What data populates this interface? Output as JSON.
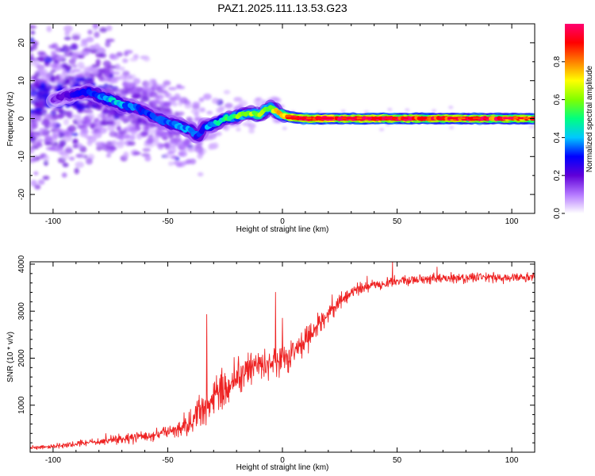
{
  "figure": {
    "title": "PAZ1.2025.111.13.53.G23"
  },
  "chart_data": [
    {
      "type": "heatmap",
      "xlabel": "Height of straight line (km)",
      "ylabel": "Frequency (Hz)",
      "xlim": [
        -110,
        110
      ],
      "ylim": [
        -25,
        25
      ],
      "xticks": [
        -100,
        -50,
        0,
        50,
        100
      ],
      "yticks": [
        -20,
        -10,
        0,
        10,
        20
      ],
      "grid": false,
      "colorbar": {
        "label": "Normalized spectral amplitude",
        "range": [
          0,
          1
        ],
        "ticks": [
          "0.0",
          "0.2",
          "0.4",
          "0.6",
          "0.8"
        ],
        "tick_values": [
          0.0,
          0.2,
          0.4,
          0.6,
          0.8
        ],
        "colormap": "rainbow",
        "colors": [
          "#ffffff",
          "#b478ff",
          "#6000d8",
          "#0000ff",
          "#00c8ff",
          "#00ff80",
          "#80ff00",
          "#ffff00",
          "#ff8000",
          "#ff0000",
          "#ff0070"
        ]
      },
      "ridge": {
        "x": [
          -100,
          -95,
          -90,
          -85,
          -80,
          -75,
          -70,
          -65,
          -60,
          -55,
          -50,
          -45,
          -40,
          -37,
          -34,
          -30,
          -25,
          -20,
          -15,
          -10,
          -8,
          -5,
          -3,
          0,
          5,
          10,
          20,
          30,
          40,
          50,
          60,
          70,
          80,
          90,
          100,
          110
        ],
        "y": [
          5,
          6,
          6.5,
          7,
          6,
          5,
          3.5,
          3,
          2,
          0,
          -1,
          -2,
          -3,
          -5,
          -2,
          -1.5,
          0,
          0.5,
          1.5,
          1,
          2,
          3,
          2,
          1,
          0.2,
          0,
          0,
          0,
          0,
          0,
          0,
          0,
          0,
          0,
          0,
          0
        ],
        "amplitude": [
          0.15,
          0.2,
          0.25,
          0.3,
          0.35,
          0.4,
          0.38,
          0.35,
          0.3,
          0.3,
          0.33,
          0.35,
          0.38,
          0.3,
          0.3,
          0.42,
          0.5,
          0.55,
          0.6,
          0.65,
          0.62,
          0.6,
          0.65,
          0.75,
          0.92,
          0.95,
          0.95,
          0.95,
          0.92,
          0.95,
          0.92,
          0.9,
          0.88,
          0.9,
          0.85,
          0.82
        ]
      }
    },
    {
      "type": "line",
      "xlabel": "Height of straight line (km)",
      "ylabel": "SNR (10 * v/v)",
      "xlim": [
        -110,
        110
      ],
      "ylim": [
        0,
        4050
      ],
      "xticks": [
        -100,
        -50,
        0,
        50,
        100
      ],
      "yticks": [
        1000,
        2000,
        3000,
        4000
      ],
      "color": "#ee2222",
      "grid": false,
      "series": [
        {
          "x": [
            -110,
            -100,
            -90,
            -80,
            -70,
            -60,
            -55,
            -50,
            -45,
            -40,
            -35,
            -30,
            -25,
            -20,
            -15,
            -10,
            -5,
            0,
            5,
            10,
            15,
            20,
            25,
            30,
            35,
            40,
            50,
            60,
            70,
            80,
            90,
            100,
            110
          ],
          "values": [
            100,
            120,
            170,
            230,
            280,
            340,
            380,
            440,
            500,
            650,
            900,
            1150,
            1400,
            1600,
            1750,
            1850,
            1900,
            1950,
            2100,
            2350,
            2650,
            2950,
            3200,
            3400,
            3500,
            3550,
            3650,
            3680,
            3700,
            3700,
            3720,
            3720,
            3720
          ],
          "noise": [
            40,
            40,
            60,
            70,
            90,
            110,
            120,
            140,
            170,
            240,
            350,
            380,
            380,
            350,
            330,
            300,
            300,
            310,
            300,
            280,
            230,
            190,
            150,
            120,
            110,
            100,
            100,
            95,
            95,
            95,
            95,
            95,
            95
          ]
        }
      ],
      "peaks": [
        {
          "x": -33,
          "y": 2930
        },
        {
          "x": -3,
          "y": 3400
        },
        {
          "x": 48,
          "y": 4050
        },
        {
          "x": 0,
          "y": 2850
        }
      ]
    }
  ]
}
